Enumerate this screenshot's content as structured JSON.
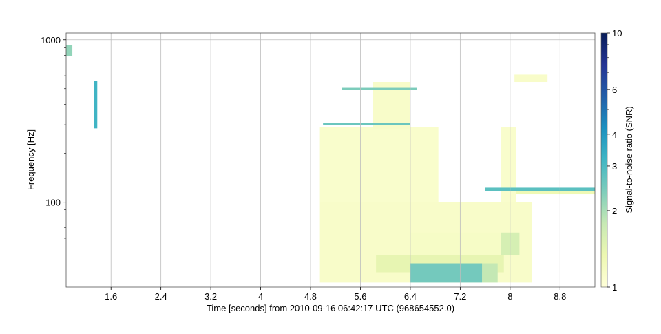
{
  "chart_data": {
    "type": "heatmap",
    "xlabel": "Time [seconds] from 2010-09-16 06:42:17 UTC (968654552.0)",
    "ylabel": "Frequency [Hz]",
    "x_ticks": [
      "1.6",
      "2.4",
      "3.2",
      "4",
      "4.8",
      "5.6",
      "6.4",
      "7.2",
      "8",
      "8.8"
    ],
    "y_ticks": [
      "100",
      "1000"
    ],
    "xlim": [
      0.88,
      9.36
    ],
    "ylim": [
      30,
      1100
    ],
    "y_scale": "log",
    "grid": true,
    "colorbar": {
      "label": "Signal-to-noise ratio (SNR)",
      "scale": "log",
      "range": [
        1,
        10
      ],
      "ticks": [
        "1",
        "2",
        "3",
        "4",
        "6",
        "10"
      ],
      "colormap": [
        "#ffffd9",
        "#edf8b1",
        "#c7e9b4",
        "#7fcdbb",
        "#41b6c4",
        "#1d91c0",
        "#225ea8",
        "#253494",
        "#081d58"
      ]
    },
    "tiles": [
      {
        "t0": 4.95,
        "t1": 8.35,
        "f0": 32,
        "f1": 100,
        "snr": 1.12
      },
      {
        "t0": 4.95,
        "t1": 6.85,
        "f0": 100,
        "f1": 290,
        "snr": 1.1
      },
      {
        "t0": 5.8,
        "t1": 6.4,
        "f0": 280,
        "f1": 550,
        "snr": 1.12
      },
      {
        "t0": 7.85,
        "t1": 8.1,
        "f0": 100,
        "f1": 290,
        "snr": 1.1
      },
      {
        "t0": 8.07,
        "t1": 8.6,
        "f0": 550,
        "f1": 610,
        "snr": 1.12
      },
      {
        "t0": 8.1,
        "t1": 9.36,
        "f0": 112,
        "f1": 120,
        "snr": 1.3
      },
      {
        "t0": 5.85,
        "t1": 7.9,
        "f0": 37,
        "f1": 47,
        "snr": 1.4
      },
      {
        "t0": 6.4,
        "t1": 7.9,
        "f0": 47,
        "f1": 65,
        "snr": 1.15
      },
      {
        "t0": 7.85,
        "t1": 8.15,
        "f0": 47,
        "f1": 65,
        "snr": 1.6
      },
      {
        "t0": 6.4,
        "t1": 7.55,
        "f0": 32,
        "f1": 42,
        "snr": 2.5
      },
      {
        "t0": 7.55,
        "t1": 7.8,
        "f0": 32,
        "f1": 42,
        "snr": 1.8
      },
      {
        "t0": 7.6,
        "t1": 9.36,
        "f0": 117,
        "f1": 123,
        "snr": 2.8
      },
      {
        "t0": 5.0,
        "t1": 6.4,
        "f0": 298,
        "f1": 308,
        "snr": 2.6
      },
      {
        "t0": 5.3,
        "t1": 6.5,
        "f0": 492,
        "f1": 506,
        "snr": 2.4
      },
      {
        "t0": 0.88,
        "t1": 0.98,
        "f0": 790,
        "f1": 930,
        "snr": 2.2
      },
      {
        "t0": 1.33,
        "t1": 1.38,
        "f0": 285,
        "f1": 560,
        "snr": 3.2
      }
    ]
  }
}
